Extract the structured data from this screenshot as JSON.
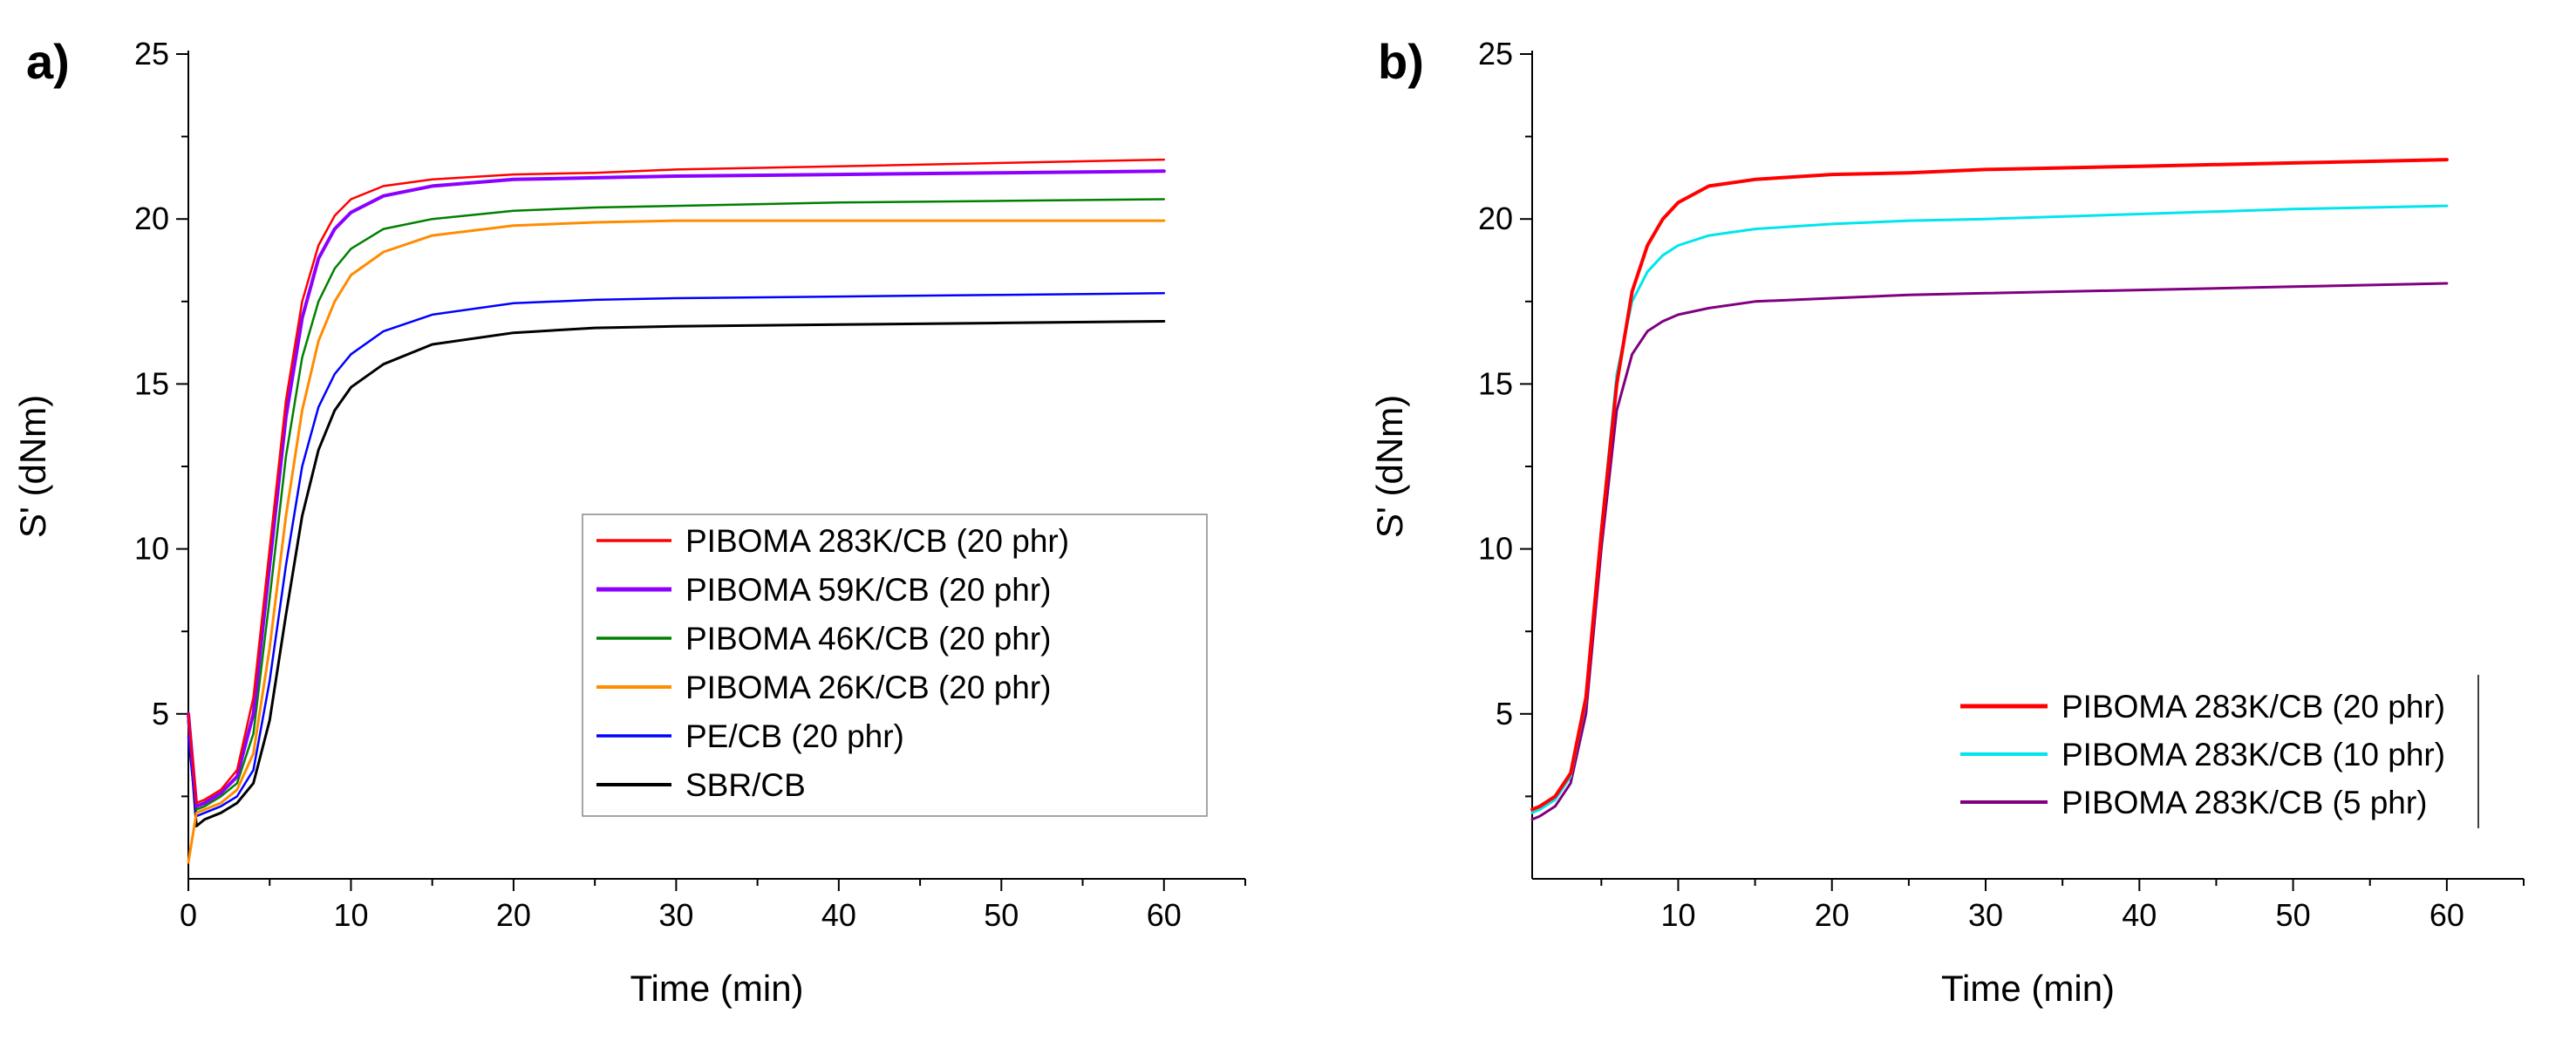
{
  "chart_data": [
    {
      "panel": "a)",
      "type": "line",
      "xlabel": "Time (min)",
      "ylabel": "S' (dNm)",
      "xlim": [
        0,
        65
      ],
      "ylim": [
        0,
        25
      ],
      "xticks": [
        0,
        10,
        20,
        30,
        40,
        50,
        60
      ],
      "yticks": [
        5,
        10,
        15,
        20,
        25
      ],
      "legend_position": "center-right",
      "legend_box": true,
      "x": [
        0,
        0.5,
        1,
        2,
        3,
        4,
        5,
        6,
        7,
        8,
        9,
        10,
        12,
        15,
        20,
        25,
        30,
        40,
        50,
        60
      ],
      "series": [
        {
          "name": "PIBOMA 283K/CB (20 phr)",
          "color": "#ff0000",
          "width": 2.5,
          "values": [
            5.0,
            2.3,
            2.4,
            2.7,
            3.3,
            5.5,
            10.0,
            14.5,
            17.5,
            19.2,
            20.1,
            20.6,
            21.0,
            21.2,
            21.35,
            21.4,
            21.5,
            21.6,
            21.7,
            21.8
          ]
        },
        {
          "name": "PIBOMA 59K/CB (20 phr)",
          "color": "#8b00ff",
          "width": 4,
          "values": [
            5.0,
            2.2,
            2.3,
            2.6,
            3.1,
            5.0,
            9.5,
            14.0,
            17.0,
            18.8,
            19.7,
            20.2,
            20.7,
            21.0,
            21.2,
            21.25,
            21.3,
            21.35,
            21.4,
            21.45
          ]
        },
        {
          "name": "PIBOMA 46K/CB (20 phr)",
          "color": "#008000",
          "width": 2.5,
          "values": [
            4.8,
            2.1,
            2.2,
            2.5,
            2.9,
            4.4,
            8.5,
            12.8,
            15.8,
            17.5,
            18.5,
            19.1,
            19.7,
            20.0,
            20.25,
            20.35,
            20.4,
            20.5,
            20.55,
            20.6
          ]
        },
        {
          "name": "PIBOMA 26K/CB (20 phr)",
          "color": "#ff8c00",
          "width": 3,
          "values": [
            0.5,
            2.0,
            2.1,
            2.3,
            2.7,
            3.8,
            7.0,
            11.0,
            14.2,
            16.3,
            17.5,
            18.3,
            19.0,
            19.5,
            19.8,
            19.9,
            19.95,
            19.95,
            19.95,
            19.95
          ]
        },
        {
          "name": "PE/CB (20 phr)",
          "color": "#0000ff",
          "width": 2.5,
          "values": [
            4.3,
            1.9,
            2.0,
            2.2,
            2.5,
            3.3,
            6.0,
            9.5,
            12.5,
            14.3,
            15.3,
            15.9,
            16.6,
            17.1,
            17.45,
            17.55,
            17.6,
            17.65,
            17.7,
            17.75
          ]
        },
        {
          "name": "SBR/CB",
          "color": "#000000",
          "width": 3,
          "values": [
            4.8,
            1.6,
            1.8,
            2.0,
            2.3,
            2.9,
            4.8,
            8.0,
            11.0,
            13.0,
            14.2,
            14.9,
            15.6,
            16.2,
            16.55,
            16.7,
            16.75,
            16.8,
            16.85,
            16.9
          ]
        }
      ]
    },
    {
      "panel": "b)",
      "type": "line",
      "xlabel": "Time (min)",
      "ylabel": "S' (dNm)",
      "xlim": [
        0.5,
        65
      ],
      "ylim": [
        0,
        25
      ],
      "xticks": [
        10,
        20,
        30,
        40,
        50,
        60
      ],
      "yticks": [
        5,
        10,
        15,
        20,
        25
      ],
      "legend_position": "bottom-right",
      "legend_box": false,
      "x": [
        0.5,
        1,
        2,
        3,
        4,
        5,
        6,
        7,
        8,
        9,
        10,
        12,
        15,
        20,
        25,
        30,
        40,
        50,
        60
      ],
      "series": [
        {
          "name": "PIBOMA 283K/CB (20 phr)",
          "color": "#ff0000",
          "width": 4,
          "values": [
            2.1,
            2.2,
            2.5,
            3.2,
            5.5,
            10.5,
            15.0,
            17.8,
            19.2,
            20.0,
            20.5,
            21.0,
            21.2,
            21.35,
            21.4,
            21.5,
            21.6,
            21.7,
            21.8
          ]
        },
        {
          "name": "PIBOMA 283K/CB (10 phr)",
          "color": "#00e5ee",
          "width": 3,
          "values": [
            2.0,
            2.1,
            2.4,
            3.1,
            5.4,
            10.6,
            15.3,
            17.5,
            18.4,
            18.9,
            19.2,
            19.5,
            19.7,
            19.85,
            19.95,
            20.0,
            20.15,
            20.3,
            20.4
          ]
        },
        {
          "name": "PIBOMA 283K/CB (5 phr)",
          "color": "#800080",
          "width": 3,
          "values": [
            1.8,
            1.9,
            2.2,
            2.9,
            5.0,
            10.0,
            14.2,
            15.9,
            16.6,
            16.9,
            17.1,
            17.3,
            17.5,
            17.6,
            17.7,
            17.75,
            17.85,
            17.95,
            18.05
          ]
        }
      ]
    }
  ]
}
